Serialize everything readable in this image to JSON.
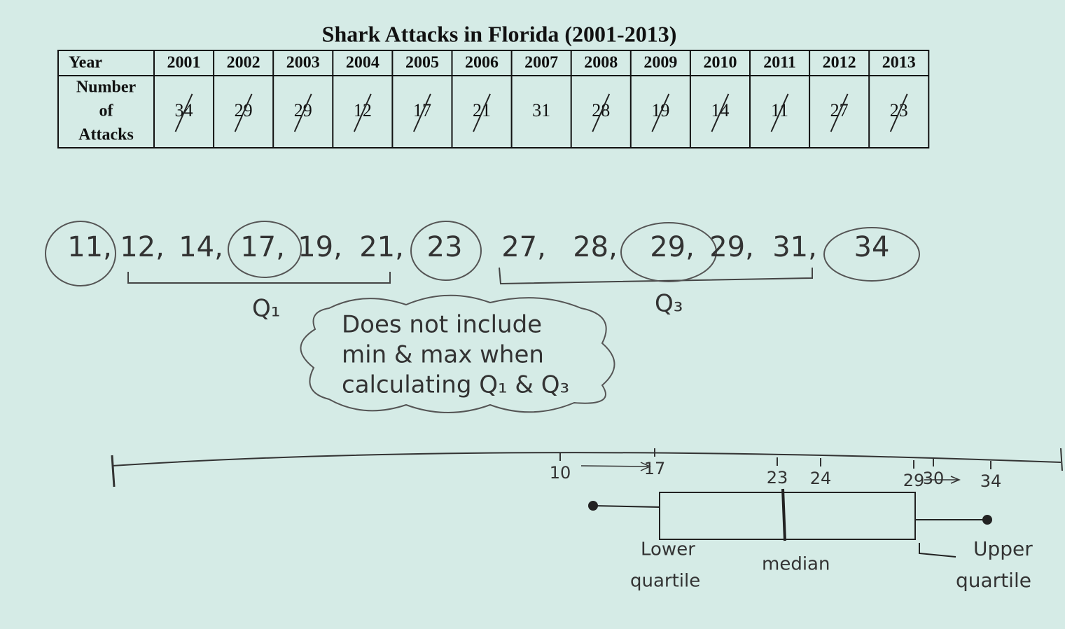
{
  "title": "Shark Attacks in Florida (2001-2013)",
  "table": {
    "header": [
      "Year",
      "2001",
      "2002",
      "2003",
      "2004",
      "2005",
      "2006",
      "2007",
      "2008",
      "2009",
      "2010",
      "2011",
      "2012",
      "2013"
    ],
    "row_label": [
      "Number",
      "of",
      "Attacks"
    ],
    "values": [
      "34",
      "29",
      "29",
      "12",
      "17",
      "21",
      "31",
      "28",
      "19",
      "14",
      "11",
      "27",
      "23"
    ]
  },
  "sorted_list": [
    "11,",
    "12,",
    "14,",
    "17,",
    "19,",
    "21,",
    "23",
    "27,",
    "28,",
    "29,",
    "29,",
    "31,",
    "34"
  ],
  "q1_label": "Q₁",
  "q3_label": "Q₃",
  "note": [
    "Does not include",
    "min & max when",
    "calculating Q₁ & Q₃"
  ],
  "number_line": [
    "10",
    "17",
    "23",
    "24",
    "29",
    "30",
    "34"
  ],
  "box_labels": {
    "lower": [
      "Lower",
      "quartile"
    ],
    "median": "median",
    "upper": [
      "Upper",
      "quartile"
    ]
  }
}
